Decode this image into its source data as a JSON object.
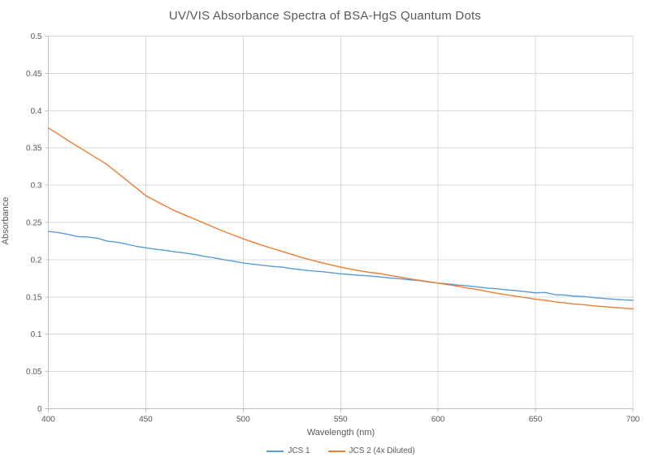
{
  "page": {
    "background": "#ffffff"
  },
  "chart_data": {
    "type": "line",
    "title": "UV/VIS Absorbance Spectra of BSA-HgS Quantum Dots",
    "xlabel": "Wavelength (nm)",
    "ylabel": "Absorbance",
    "xlim": [
      400,
      700
    ],
    "ylim": [
      0,
      0.5
    ],
    "x_tick_labels": [
      "400",
      "450",
      "500",
      "550",
      "600",
      "650",
      "700"
    ],
    "y_tick_labels": [
      "0",
      "0.05",
      "0.1",
      "0.15",
      "0.2",
      "0.25",
      "0.3",
      "0.35",
      "0.4",
      "0.45",
      "0.5"
    ],
    "grid": true,
    "legend_position": "bottom",
    "colors": {
      "grid": "#D9D9D9",
      "axis": "#BFBFBF",
      "text": "#595959"
    },
    "x": [
      400,
      405,
      410,
      415,
      420,
      425,
      430,
      435,
      440,
      445,
      450,
      455,
      460,
      465,
      470,
      475,
      480,
      485,
      490,
      495,
      500,
      505,
      510,
      515,
      520,
      525,
      530,
      535,
      540,
      545,
      550,
      555,
      560,
      565,
      570,
      575,
      580,
      585,
      590,
      595,
      600,
      605,
      610,
      615,
      620,
      625,
      630,
      635,
      640,
      645,
      650,
      655,
      660,
      665,
      670,
      675,
      680,
      685,
      690,
      695,
      700
    ],
    "series": [
      {
        "name": "JCS 1",
        "color": "#5B9BD5",
        "values": [
          0.238,
          0.2365,
          0.234,
          0.231,
          0.2305,
          0.229,
          0.225,
          0.2235,
          0.221,
          0.218,
          0.216,
          0.214,
          0.2125,
          0.2105,
          0.209,
          0.207,
          0.2045,
          0.2025,
          0.2,
          0.198,
          0.1955,
          0.194,
          0.1925,
          0.191,
          0.19,
          0.188,
          0.1865,
          0.185,
          0.184,
          0.1825,
          0.181,
          0.18,
          0.179,
          0.178,
          0.177,
          0.1755,
          0.1745,
          0.173,
          0.172,
          0.17,
          0.1685,
          0.1675,
          0.166,
          0.165,
          0.1635,
          0.162,
          0.161,
          0.1595,
          0.1585,
          0.157,
          0.1555,
          0.156,
          0.153,
          0.1525,
          0.151,
          0.1505,
          0.149,
          0.148,
          0.147,
          0.146,
          0.1455
        ]
      },
      {
        "name": "JCS 2 (4x Diluted)",
        "color": "#ED7D31",
        "values": [
          0.377,
          0.3685,
          0.36,
          0.352,
          0.344,
          0.336,
          0.328,
          0.3175,
          0.307,
          0.2965,
          0.286,
          0.279,
          0.272,
          0.2655,
          0.26,
          0.2545,
          0.249,
          0.2435,
          0.238,
          0.233,
          0.228,
          0.2235,
          0.219,
          0.215,
          0.211,
          0.207,
          0.203,
          0.1995,
          0.196,
          0.193,
          0.19,
          0.1875,
          0.185,
          0.183,
          0.1815,
          0.179,
          0.177,
          0.1745,
          0.1725,
          0.1705,
          0.1685,
          0.1665,
          0.1645,
          0.162,
          0.16,
          0.1575,
          0.155,
          0.153,
          0.151,
          0.149,
          0.147,
          0.1455,
          0.1435,
          0.142,
          0.1405,
          0.1395,
          0.138,
          0.137,
          0.136,
          0.135,
          0.134
        ]
      }
    ]
  }
}
